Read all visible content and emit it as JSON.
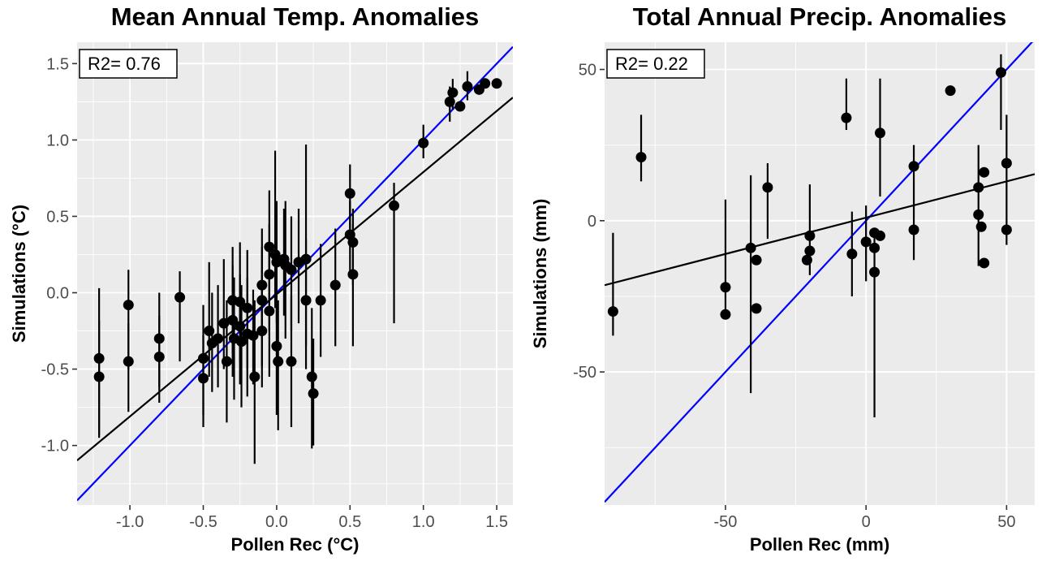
{
  "figure": {
    "colors": {
      "background": "#FFFFFF",
      "panel_background": "#EBEBEB",
      "grid": "#FFFFFF",
      "point": "#000000",
      "identity_line": "#0000FF",
      "fit_line": "#000000",
      "tick_label": "#4D4D4D",
      "axis_tick": "#333333",
      "annotation_bg": "#FFFFFF",
      "annotation_border": "#000000",
      "text": "#000000"
    }
  },
  "chart_data": [
    {
      "type": "scatter",
      "title": "Mean Annual Temp. Anomalies",
      "xlabel": "Pollen Rec (°C)",
      "ylabel": "Simulations (°C)",
      "annotation": "R2= 0.76",
      "xlim": [
        -1.36,
        1.61
      ],
      "ylim": [
        -1.39,
        1.64
      ],
      "xticks": [
        -1.0,
        -0.5,
        0.0,
        0.5,
        1.0,
        1.5
      ],
      "xtick_labels": [
        "-1.0",
        "-0.5",
        "0.0",
        "0.5",
        "1.0",
        "1.5"
      ],
      "yticks": [
        -1.0,
        -0.5,
        0.0,
        0.5,
        1.0,
        1.5
      ],
      "ytick_labels": [
        "-1.0",
        "-0.5",
        "0.0",
        "0.5",
        "1.0",
        "1.5"
      ],
      "grid": true,
      "legend": "none",
      "identity_line": {
        "slope": 1,
        "intercept": 0
      },
      "fit_line": {
        "slope": 0.8,
        "intercept": -0.01
      },
      "points": [
        [
          -1.21,
          -0.43,
          -0.93,
          0.03
        ],
        [
          -1.21,
          -0.55,
          -0.95,
          -0.18
        ],
        [
          -1.01,
          -0.08,
          -0.5,
          0.15
        ],
        [
          -1.01,
          -0.45,
          -0.78,
          -0.2
        ],
        [
          -0.8,
          -0.3,
          -0.62,
          0.0
        ],
        [
          -0.8,
          -0.42,
          -0.72,
          -0.15
        ],
        [
          -0.66,
          -0.03,
          -0.45,
          0.14
        ],
        [
          -0.5,
          -0.43,
          -0.8,
          -0.08
        ],
        [
          -0.5,
          -0.56,
          -0.88,
          -0.28
        ],
        [
          -0.46,
          -0.25,
          -0.55,
          0.2
        ],
        [
          -0.44,
          -0.33,
          -0.65,
          0.0
        ],
        [
          -0.4,
          -0.3,
          -0.62,
          0.05
        ],
        [
          -0.36,
          -0.2,
          -0.5,
          0.22
        ],
        [
          -0.34,
          -0.45,
          -0.85,
          -0.05
        ],
        [
          -0.3,
          -0.05,
          -0.4,
          0.3
        ],
        [
          -0.3,
          -0.18,
          -0.55,
          0.18
        ],
        [
          -0.29,
          -0.3,
          -0.7,
          0.1
        ],
        [
          -0.25,
          -0.06,
          -0.45,
          0.33
        ],
        [
          -0.25,
          -0.22,
          -0.6,
          0.12
        ],
        [
          -0.24,
          -0.32,
          -0.75,
          0.05
        ],
        [
          -0.2,
          -0.1,
          -0.5,
          0.28
        ],
        [
          -0.2,
          -0.27,
          -0.68,
          0.1
        ],
        [
          -0.16,
          -0.28,
          -0.6,
          0.02
        ],
        [
          -0.15,
          -0.55,
          -1.12,
          -0.05
        ],
        [
          -0.1,
          0.05,
          -0.3,
          0.42
        ],
        [
          -0.1,
          -0.05,
          -0.48,
          0.3
        ],
        [
          -0.1,
          -0.25,
          -0.62,
          0.15
        ],
        [
          -0.05,
          0.3,
          -0.05,
          0.67
        ],
        [
          -0.05,
          0.12,
          -0.25,
          0.45
        ],
        [
          -0.05,
          -0.12,
          -0.55,
          0.3
        ],
        [
          -0.01,
          0.25,
          -0.1,
          0.93
        ],
        [
          0.0,
          0.2,
          -0.2,
          0.6
        ],
        [
          0.0,
          -0.35,
          -0.8,
          0.08
        ],
        [
          0.01,
          -0.45,
          -0.9,
          -0.05
        ],
        [
          0.05,
          0.22,
          -0.15,
          0.55
        ],
        [
          0.06,
          0.18,
          -0.3,
          0.6
        ],
        [
          0.1,
          0.15,
          -0.25,
          0.5
        ],
        [
          0.1,
          -0.45,
          -0.88,
          -0.02
        ],
        [
          0.15,
          0.2,
          -0.2,
          0.55
        ],
        [
          0.2,
          0.22,
          -0.35,
          0.97
        ],
        [
          0.2,
          -0.05,
          -0.5,
          0.35
        ],
        [
          0.24,
          -0.55,
          -1.02,
          -0.1
        ],
        [
          0.25,
          -0.66,
          -1.0,
          -0.3
        ],
        [
          0.3,
          -0.05,
          -0.42,
          0.32
        ],
        [
          0.4,
          0.05,
          -0.35,
          0.42
        ],
        [
          0.5,
          0.65,
          0.42,
          0.84
        ],
        [
          0.5,
          0.38,
          0.1,
          0.6
        ],
        [
          0.52,
          0.33,
          0.05,
          0.55
        ],
        [
          0.52,
          0.12,
          -0.35,
          0.45
        ],
        [
          0.8,
          0.57,
          -0.2,
          0.72
        ],
        [
          1.0,
          0.98,
          0.88,
          1.1
        ],
        [
          1.18,
          1.25,
          1.12,
          1.35
        ],
        [
          1.2,
          1.31,
          1.2,
          1.4
        ],
        [
          1.25,
          1.22,
          null,
          null
        ],
        [
          1.3,
          1.35,
          1.26,
          1.45
        ],
        [
          1.38,
          1.33,
          null,
          null
        ],
        [
          1.42,
          1.37,
          null,
          null
        ],
        [
          1.5,
          1.37,
          null,
          null
        ]
      ]
    },
    {
      "type": "scatter",
      "title": "Total Annual Precip. Anomalies",
      "xlabel": "Pollen Rec (mm)",
      "ylabel": "Simulations (mm)",
      "annotation": "R2= 0.22",
      "xlim": [
        -93,
        60
      ],
      "ylim": [
        -94,
        59
      ],
      "xticks": [
        -50,
        0,
        50
      ],
      "xtick_labels": [
        "-50",
        "0",
        "50"
      ],
      "yticks": [
        -50,
        0,
        50
      ],
      "ytick_labels": [
        "-50",
        "0",
        "50"
      ],
      "grid": true,
      "legend": "none",
      "identity_line": {
        "slope": 1,
        "intercept": 0
      },
      "fit_line": {
        "slope": 0.24,
        "intercept": 1
      },
      "points": [
        [
          -90,
          -30,
          -38,
          -4
        ],
        [
          -80,
          21,
          13,
          35
        ],
        [
          -50,
          -22,
          -30,
          7
        ],
        [
          -50,
          -31,
          null,
          null
        ],
        [
          -41,
          -9,
          -57,
          15
        ],
        [
          -39,
          -13,
          null,
          null
        ],
        [
          -39,
          -29,
          null,
          null
        ],
        [
          -35,
          11,
          -6,
          19
        ],
        [
          -20,
          -5,
          -18,
          12
        ],
        [
          -20,
          -10,
          null,
          null
        ],
        [
          -21,
          -13,
          null,
          null
        ],
        [
          -7,
          34,
          30,
          47
        ],
        [
          -5,
          -11,
          -25,
          3
        ],
        [
          0,
          -7,
          -20,
          5
        ],
        [
          3,
          -4,
          null,
          null
        ],
        [
          3,
          -9,
          null,
          null
        ],
        [
          3,
          -17,
          -65,
          -5
        ],
        [
          5,
          29,
          8,
          47
        ],
        [
          5,
          -5,
          null,
          null
        ],
        [
          17,
          18,
          -13,
          25
        ],
        [
          17,
          -3,
          null,
          null
        ],
        [
          30,
          43,
          null,
          null
        ],
        [
          40,
          11,
          -15,
          25
        ],
        [
          40,
          2,
          null,
          null
        ],
        [
          41,
          -2,
          null,
          null
        ],
        [
          42,
          16,
          null,
          null
        ],
        [
          42,
          -14,
          null,
          null
        ],
        [
          48,
          49,
          30,
          55
        ],
        [
          50,
          19,
          -8,
          35
        ],
        [
          50,
          -3,
          null,
          null
        ]
      ]
    }
  ]
}
